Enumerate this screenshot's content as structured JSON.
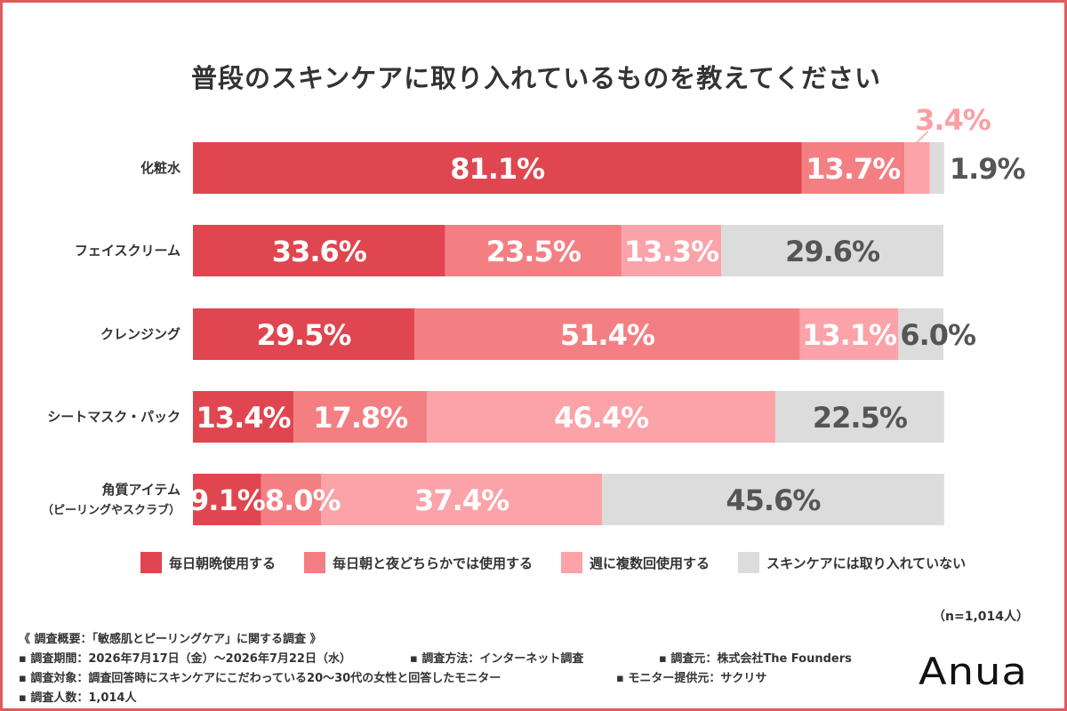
{
  "title": "普段のスキンケアに取り入れているものを教えてください",
  "colors": {
    "border": "#e05a5e",
    "daily_morning_night": "#e0464f",
    "daily_morning_or_night": "#f47f83",
    "weekly_multiple": "#fba3a8",
    "not_used": "#dcdcdc",
    "label_light": "#ffffff",
    "label_dark": "#555555",
    "label_outside_pink": "#fb9fa4"
  },
  "chart_data": {
    "type": "bar",
    "orientation": "horizontal",
    "stacked": true,
    "title": "普段のスキンケアに取り入れているものを教えてください",
    "categories": [
      [
        "化粧水"
      ],
      [
        "フェイスクリーム"
      ],
      [
        "クレンジング"
      ],
      [
        "シートマスク・パック"
      ],
      [
        "角質アイテム",
        "（ピーリングやスクラブ）"
      ]
    ],
    "unit": "%",
    "xlim": [
      0,
      100
    ],
    "series": [
      {
        "name": "毎日朝晩使用する",
        "values": [
          81.1,
          33.6,
          29.5,
          13.4,
          9.1
        ]
      },
      {
        "name": "毎日朝と夜どちらかでは使用する",
        "values": [
          13.7,
          23.5,
          51.4,
          17.8,
          8.0
        ]
      },
      {
        "name": "週に複数回使用する",
        "values": [
          3.4,
          13.3,
          13.1,
          46.4,
          37.4
        ]
      },
      {
        "name": "スキンケアには取り入れていない",
        "values": [
          1.9,
          29.6,
          6.0,
          22.5,
          45.6
        ]
      }
    ],
    "legend_position": "bottom"
  },
  "legend": [
    {
      "label": "毎日朝晩使用する"
    },
    {
      "label": "毎日朝と夜どちらかでは使用する"
    },
    {
      "label": "週に複数回使用する"
    },
    {
      "label": "スキンケアには取り入れていない"
    }
  ],
  "sample": "（n=1,014人）",
  "footer": {
    "overview": "《 調査概要：「敏感肌とピーリングケア」に関する調査 》",
    "period": "▪ 調査期間：2026年7月17日（金）〜2026年7月22日（水）",
    "method": "▪ 調査方法：インターネット調査",
    "source": "▪ 調査元：株式会社The Founders",
    "target": "▪ 調査対象：調査回答時にスキンケアにこだわっている20〜30代の女性と回答したモニター",
    "provider": "▪ モニター提供元：サクリサ",
    "count": "▪ 調査人数：1,014人"
  },
  "logo": "Anua"
}
